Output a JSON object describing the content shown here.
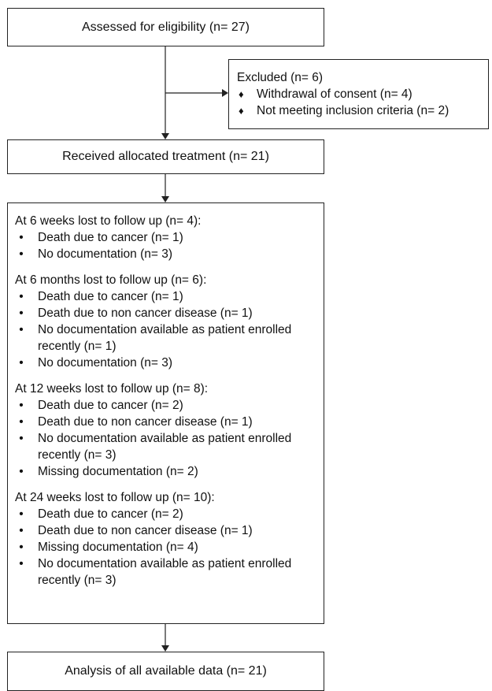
{
  "boxes": {
    "assessed": "Assessed for eligibility (n= 27)",
    "excluded": {
      "title": "Excluded (n= 6)",
      "items": [
        "Withdrawal of consent (n= 4)",
        "Not meeting inclusion criteria (n= 2)"
      ]
    },
    "treatment": "Received allocated treatment (n= 21)",
    "followup": [
      {
        "title": "At 6 weeks lost to follow up (n= 4):",
        "items": [
          "Death due to cancer (n= 1)",
          "No documentation (n= 3)"
        ]
      },
      {
        "title": "At 6 months lost to follow up (n= 6):",
        "items": [
          "Death due to cancer (n= 1)",
          "Death due to non cancer disease (n= 1)",
          "No documentation available as patient enrolled recently (n= 1)",
          "No documentation (n= 3)"
        ]
      },
      {
        "title": "At 12 weeks lost to follow up (n= 8):",
        "items": [
          "Death due to cancer (n= 2)",
          "Death due to non cancer disease (n= 1)",
          "No documentation available as patient enrolled recently (n= 3)",
          "Missing documentation (n= 2)"
        ]
      },
      {
        "title": "At 24 weeks lost to follow up (n= 10):",
        "items": [
          "Death due to cancer (n= 2)",
          "Death due to non cancer disease (n= 1)",
          "Missing documentation (n= 4)",
          "No documentation available as patient enrolled recently (n= 3)"
        ]
      }
    ],
    "analysis": "Analysis of all available data (n= 21)"
  },
  "markers": {
    "excluded_bullet": "♦",
    "followup_bullet": "•"
  }
}
